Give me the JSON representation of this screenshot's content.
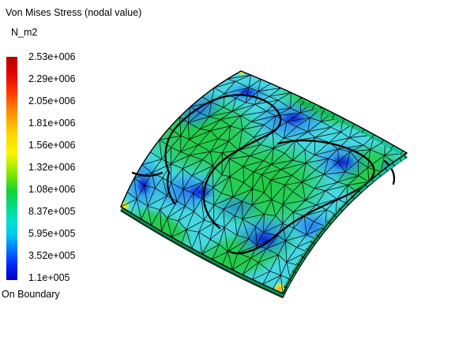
{
  "viewport": {
    "title": "Von Mises Stress (nodal value)",
    "unit": "N_m2",
    "boundary_label": "On Boundary"
  },
  "colorbar": {
    "values": [
      "2.53e+006",
      "2.29e+006",
      "2.05e+006",
      "1.81e+006",
      "1.56e+006",
      "1.32e+006",
      "1.08e+006",
      "8.37e+005",
      "5.95e+005",
      "3.52e+005",
      "1.1e+005"
    ],
    "stops": [
      {
        "p": 0,
        "c": "#b40000"
      },
      {
        "p": 0.07,
        "c": "#e00000"
      },
      {
        "p": 0.15,
        "c": "#ff3000"
      },
      {
        "p": 0.25,
        "c": "#ff9000"
      },
      {
        "p": 0.35,
        "c": "#ffd900"
      },
      {
        "p": 0.43,
        "c": "#fcf500"
      },
      {
        "p": 0.52,
        "c": "#8ae800"
      },
      {
        "p": 0.6,
        "c": "#14d432"
      },
      {
        "p": 0.67,
        "c": "#00dc86"
      },
      {
        "p": 0.74,
        "c": "#00e2d2"
      },
      {
        "p": 0.8,
        "c": "#00c4ee"
      },
      {
        "p": 0.87,
        "c": "#0070ff"
      },
      {
        "p": 0.93,
        "c": "#0026ff"
      },
      {
        "p": 1,
        "c": "#0000be"
      }
    ]
  },
  "scene": {
    "background": "#ffffff",
    "surface_base": "#46d7e1",
    "green": "#1fcb3a",
    "blue": "#2878f0",
    "dark_blue": "#0a1ed7",
    "yellow": "#ffee00",
    "orange": "#ff8c00",
    "mesh_line": "#000000",
    "side_dark": "#0b5a26",
    "side_teal": "#12c9a0"
  }
}
